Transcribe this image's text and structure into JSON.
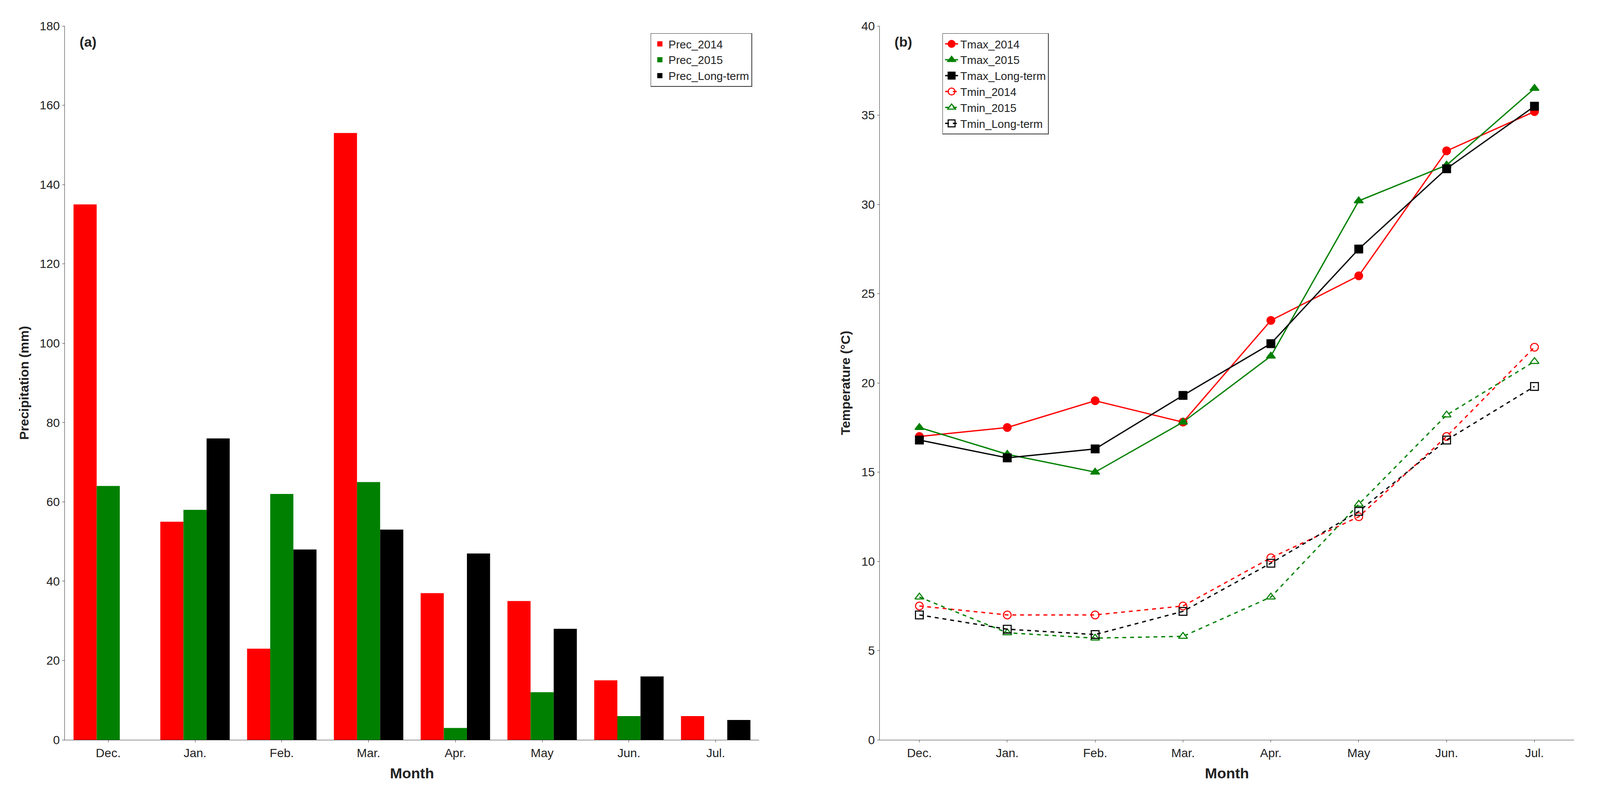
{
  "chart_data": [
    {
      "type": "bar",
      "categories": [
        "Dec.",
        "Jan.",
        "Feb.",
        "Mar.",
        "Apr.",
        "May",
        "Jun.",
        "Jul."
      ],
      "series": [
        {
          "name": "Prec_2014",
          "color": "#FF0000",
          "values": [
            135,
            55,
            23,
            153,
            37,
            35,
            15,
            6
          ]
        },
        {
          "name": "Prec_2015",
          "color": "#008000",
          "values": [
            64,
            58,
            62,
            65,
            3,
            12,
            6,
            0
          ]
        },
        {
          "name": "Prec_Long-term",
          "color": "#000000",
          "values": [
            0,
            76,
            48,
            53,
            47,
            28,
            16,
            5
          ]
        }
      ],
      "xlabel": "Month",
      "ylabel": "Precipitation (mm)",
      "ylim": [
        0,
        180
      ],
      "yticks": [
        0,
        20,
        40,
        60,
        80,
        100,
        120,
        140,
        160,
        180
      ],
      "annotation": "(a)",
      "legend": "upper right",
      "grid": false
    },
    {
      "type": "line",
      "categories": [
        "Dec.",
        "Jan.",
        "Feb.",
        "Mar.",
        "Apr.",
        "May",
        "Jun.",
        "Jul."
      ],
      "series": [
        {
          "name": "Tmax_2014",
          "color": "#FF0000",
          "marker": "circle",
          "line_style": "solid",
          "values": [
            17.0,
            17.5,
            19.0,
            17.8,
            23.5,
            26.0,
            33.0,
            35.2
          ]
        },
        {
          "name": "Tmax_2015",
          "color": "#008000",
          "marker": "triangle-up",
          "line_style": "solid",
          "values": [
            17.5,
            16.0,
            15.0,
            17.8,
            21.5,
            30.2,
            32.2,
            36.5
          ]
        },
        {
          "name": "Tmax_Long-term",
          "color": "#000000",
          "marker": "square",
          "line_style": "solid",
          "values": [
            16.8,
            15.8,
            16.3,
            19.3,
            22.2,
            27.5,
            32.0,
            35.5
          ]
        },
        {
          "name": "Tmin_2014",
          "color": "#FF0000",
          "marker": "circle-open",
          "line_style": "dash",
          "values": [
            7.5,
            7.0,
            7.0,
            7.5,
            10.2,
            12.5,
            17.0,
            22.0
          ]
        },
        {
          "name": "Tmin_2015",
          "color": "#008000",
          "marker": "triangle-up-open",
          "line_style": "dash",
          "values": [
            8.0,
            6.0,
            5.7,
            5.8,
            8.0,
            13.2,
            18.2,
            21.2
          ]
        },
        {
          "name": "Tmin_Long-term",
          "color": "#000000",
          "marker": "square-open",
          "line_style": "dash",
          "values": [
            7.0,
            6.2,
            5.9,
            7.2,
            9.9,
            12.8,
            16.8,
            19.8
          ]
        }
      ],
      "xlabel": "Month",
      "ylabel": "Temperature (°C)",
      "ylim": [
        0,
        40
      ],
      "yticks": [
        0,
        5,
        10,
        15,
        20,
        25,
        30,
        35,
        40
      ],
      "annotation": "(b)",
      "legend": "upper left",
      "grid": false
    }
  ]
}
